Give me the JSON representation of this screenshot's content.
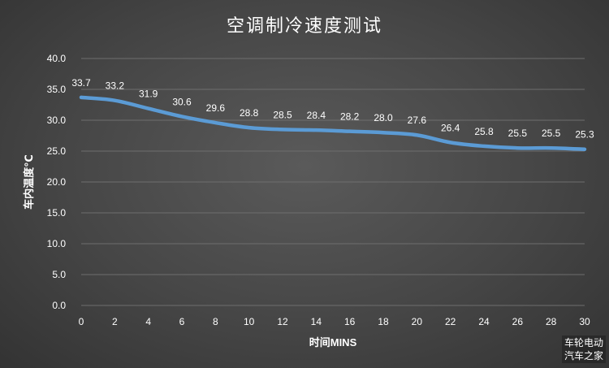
{
  "chart_data": {
    "type": "line",
    "title": "空调制冷速度测试",
    "xlabel": "时间MINS",
    "ylabel": "车内温度℃",
    "x": [
      0,
      2,
      4,
      6,
      8,
      10,
      12,
      14,
      16,
      18,
      20,
      22,
      24,
      26,
      28,
      30
    ],
    "series": [
      {
        "values": [
          33.7,
          33.2,
          31.9,
          30.6,
          29.6,
          28.8,
          28.5,
          28.4,
          28.2,
          28.0,
          27.6,
          26.4,
          25.8,
          25.5,
          25.5,
          25.3
        ],
        "labels": [
          "33.7",
          "33.2",
          "31.9",
          "30.6",
          "29.6",
          "28.8",
          "28.5",
          "28.4",
          "28.2",
          "28.0",
          "27.6",
          "26.4",
          "25.8",
          "25.5",
          "25.5",
          "25.3"
        ],
        "color": "#5b9bd5"
      }
    ],
    "ylim": [
      0,
      40
    ],
    "yticks": [
      "0.0",
      "5.0",
      "10.0",
      "15.0",
      "20.0",
      "25.0",
      "30.0",
      "35.0",
      "40.0"
    ],
    "grid": true,
    "legend": "none"
  },
  "watermark": {
    "line1": "车轮电动",
    "line2": "汽车之家"
  },
  "colors": {
    "background": "#464646",
    "gridline": "#6e6e6e",
    "text": "#ffffff",
    "line": "#5b9bd5"
  }
}
